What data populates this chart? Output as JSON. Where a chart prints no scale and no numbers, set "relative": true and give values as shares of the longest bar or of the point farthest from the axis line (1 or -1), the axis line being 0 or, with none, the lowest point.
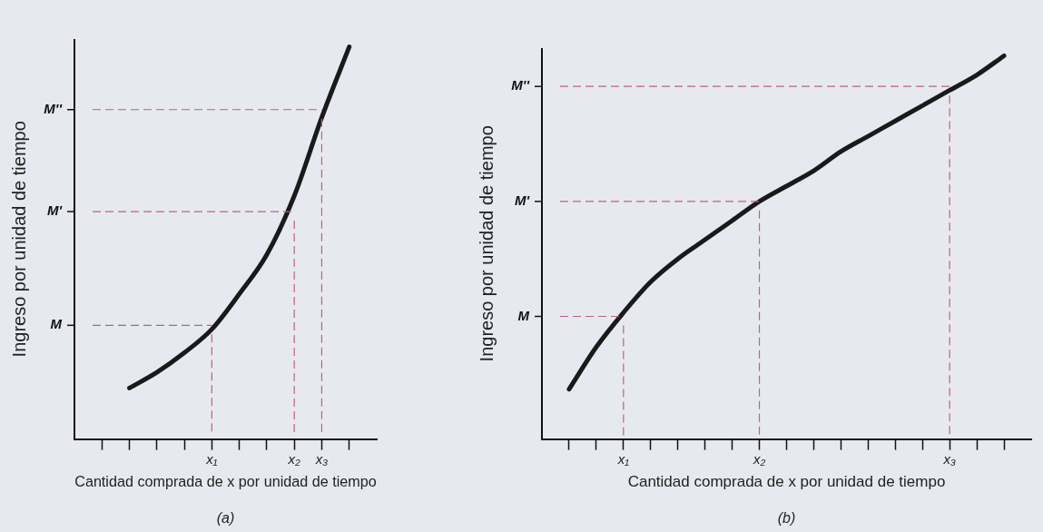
{
  "chart_data": [
    {
      "type": "line",
      "relative": true,
      "marker": "none",
      "xlabel": "Cantidad comprada de x por unidad de tiempo",
      "ylabel": "Ingreso por unidad de tiempo",
      "categories": [
        null,
        null,
        null,
        null,
        null,
        "x₁",
        null,
        null,
        "x₂",
        "x₃",
        null,
        null
      ],
      "series": [
        {
          "color": "#1a1a1a",
          "values": [
            null,
            null,
            0.13,
            0.17,
            0.22,
            0.28,
            0.37,
            0.47,
            0.62,
            0.82,
            1,
            null
          ]
        }
      ],
      "ref_lines": [
        {
          "axis": "y",
          "value": 0.29,
          "label": "M",
          "color": "#c0607a",
          "line_style": "dashed"
        },
        {
          "axis": "y",
          "value": 0.58,
          "label": "M'",
          "color": "#c0607a",
          "line_style": "dashed"
        },
        {
          "axis": "y",
          "value": 0.84,
          "label": "M''",
          "color": "#c0607a",
          "line_style": "dashed"
        },
        {
          "axis": "x",
          "value": "x₁",
          "color": "#c0607a",
          "line_style": "dashed"
        },
        {
          "axis": "x",
          "value": "x₂",
          "color": "#c0607a",
          "line_style": "dashed"
        },
        {
          "axis": "x",
          "value": "x₃",
          "color": "#c0607a",
          "line_style": "dashed"
        }
      ],
      "annotations": [
        "(a)"
      ]
    },
    {
      "type": "line",
      "relative": true,
      "marker": "none",
      "xlabel": "Cantidad comprada de x por unidad de tiempo",
      "ylabel": "Ingreso por unidad de tiempo",
      "categories": [
        null,
        null,
        null,
        "x₁",
        null,
        null,
        null,
        null,
        "x₂",
        null,
        null,
        null,
        null,
        null,
        null,
        "x₃",
        null,
        null,
        null
      ],
      "series": [
        {
          "color": "#1a1a1a",
          "values": [
            null,
            0.13,
            0.24,
            0.33,
            0.41,
            0.47,
            0.52,
            0.57,
            0.62,
            0.66,
            0.7,
            0.75,
            0.79,
            0.83,
            0.87,
            0.91,
            0.95,
            1,
            null
          ]
        }
      ],
      "ref_lines": [
        {
          "axis": "y",
          "value": 0.32,
          "label": "M",
          "color": "#c0607a",
          "line_style": "dashed"
        },
        {
          "axis": "y",
          "value": 0.62,
          "label": "M'",
          "color": "#c0607a",
          "line_style": "dashed"
        },
        {
          "axis": "y",
          "value": 0.92,
          "label": "M''",
          "color": "#c0607a",
          "line_style": "dashed"
        },
        {
          "axis": "x",
          "value": "x₁",
          "color": "#c0607a",
          "line_style": "dashed"
        },
        {
          "axis": "x",
          "value": "x₂",
          "color": "#c0607a",
          "line_style": "dashed"
        },
        {
          "axis": "x",
          "value": "x₃",
          "color": "#c0607a",
          "line_style": "dashed"
        }
      ],
      "annotations": [
        "(b)"
      ]
    }
  ]
}
